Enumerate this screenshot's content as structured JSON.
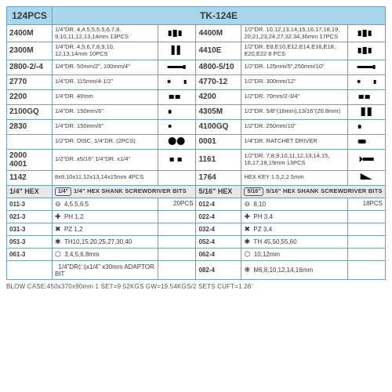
{
  "header": {
    "left": "124PCS",
    "right": "TK-124E"
  },
  "layout": {
    "col_widths_pct": [
      12,
      28,
      10,
      12,
      28,
      10
    ],
    "header_bg": "#a8d6ec",
    "border_color": "#6fa0b8",
    "shank_bg": "#e8e8e8",
    "bg": "#ffffff",
    "text_color": "#3a3a3a",
    "font_size_body": 8,
    "font_size_header": 12,
    "font_size_code": 10
  },
  "rows": [
    {
      "l": {
        "code": "2400M",
        "desc": "1/4\"DR.  4,4.5,5,5.5,6,7,8,\n9,10,11,12,13,14mm    13PCS",
        "icon": "socket-set"
      },
      "r": {
        "code": "4400M",
        "desc": "1/2\"DR.  10,12,13,14,15,16,17,18,19,\n20,21,23,24,27,32,34,36mm    17PCS",
        "icon": "socket-set"
      }
    },
    {
      "l": {
        "code": "2300M",
        "desc": "1/4\"DR.  4,5,6,7,8,9,10,\n12,13,14mm    10PCS",
        "icon": "deep-socket"
      },
      "r": {
        "code": "4410E",
        "desc": "1/2\"DR.  E8,E10,E12,E14,E16,E18,\nE20,E22    8 PCS",
        "icon": "socket-set"
      }
    },
    {
      "l": {
        "code": "2800-2/-4",
        "desc": "1/4\"DR.  50mm/2\", 100mm/4\"",
        "icon": "extension"
      },
      "r": {
        "code": "4800-5/10",
        "desc": "1/2\"DR.  125mm/5\",250mm/10\"",
        "icon": "extension"
      }
    },
    {
      "l": {
        "code": "2770",
        "desc": "1/4\"DR.  115mm/4-1/2\"",
        "icon": "spinner"
      },
      "r": {
        "code": "4770-12",
        "desc": "1/2\"DR.  300mm/12\"",
        "icon": "spinner"
      }
    },
    {
      "l": {
        "code": "2200",
        "desc": "1/4\"DR.  40mm",
        "icon": "ujoint"
      },
      "r": {
        "code": "4200",
        "desc": "1/2\"DR.  70mm/2-3/4\"",
        "icon": "ujoint"
      }
    },
    {
      "l": {
        "code": "2100GQ",
        "desc": "1/4\"DR.  150mm/6\"",
        "icon": "ratchet"
      },
      "r": {
        "code": "4305M",
        "desc": "1/2\"DR.  5/8\"(16mm),13/16\"(20.8mm)",
        "icon": "spark-socket"
      }
    },
    {
      "l": {
        "code": "2830",
        "desc": "1/4\"DR.  150mm/6\"",
        "icon": "flex-handle"
      },
      "r": {
        "code": "4100GQ",
        "desc": "1/2\"DR.  250mm/10\"",
        "icon": "ratchet"
      }
    },
    {
      "l": {
        "code": "",
        "desc": "1/2\"DR. DISC, 1/4\"DR. (2PCS)",
        "icon": "disc"
      },
      "r": {
        "code": "0001",
        "desc": "1/4\"DR.  RATCHET DRIVER",
        "icon": "ratchet-driver"
      }
    },
    {
      "l": {
        "code": "2000\n4001",
        "desc": "1/2\"DR. x5/16\"           1/4\"DR. x1/4\"",
        "icon": "adaptor"
      },
      "r": {
        "code": "1161",
        "desc": "1/2\"DR.  7,8,9,10,11,12,13,14,15,\n16,17,18,19mm    13PCS",
        "icon": "crow-foot"
      }
    },
    {
      "l": {
        "code": "1142",
        "desc": "8x9,10x11,12x13,14x15mm    4PCS",
        "icon": "wrench-set"
      },
      "r": {
        "code": "1764",
        "desc": "HEX KEY 1.5,2,2.5mm",
        "icon": "hexkey"
      }
    }
  ],
  "shank": {
    "l": {
      "code": "1/4\" HEX",
      "badge": "1/4\"",
      "text": "1/4\" HEX SHANK\nSCREWDRIVER BITS"
    },
    "r": {
      "code": "5/16\" HEX",
      "badge": "5/16\"",
      "text": "5/16\" HEX SHANK\nSCREWDRIVER BITS"
    }
  },
  "bits": [
    {
      "l": {
        "code": "011-3",
        "sym": "⊖",
        "desc": "4,5.5,6.5",
        "qty": "20PCS"
      },
      "r": {
        "code": "012-4",
        "sym": "⊖",
        "desc": "8,10",
        "qty": "18PCS"
      }
    },
    {
      "l": {
        "code": "021-3",
        "sym": "✚",
        "desc": "PH 1,2",
        "qty": ""
      },
      "r": {
        "code": "022-4",
        "sym": "✚",
        "desc": "PH 3,4",
        "qty": ""
      }
    },
    {
      "l": {
        "code": "031-3",
        "sym": "✖",
        "desc": "PZ 1,2",
        "qty": ""
      },
      "r": {
        "code": "032-4",
        "sym": "✖",
        "desc": "PZ 3,4",
        "qty": ""
      }
    },
    {
      "l": {
        "code": "051-3",
        "sym": "✱",
        "desc": "TH10,15,20,25,27,30,40",
        "qty": ""
      },
      "r": {
        "code": "052-4",
        "sym": "✱",
        "desc": "TH 45,50,55,60",
        "qty": ""
      }
    },
    {
      "l": {
        "code": "061-3",
        "sym": "⬡",
        "desc": "3,4,5,6,8mm",
        "qty": ""
      },
      "r": {
        "code": "062-4",
        "sym": "⬡",
        "desc": "10,12mm",
        "qty": ""
      }
    },
    {
      "l": {
        "code": "",
        "sym": "",
        "desc": "1/4\"DR(□)x1/4\"   x30mm ADAPTOR BIT",
        "qty": ""
      },
      "r": {
        "code": "082-4",
        "sym": "❋",
        "desc": "M6,8,10,12,14,16mm",
        "qty": ""
      }
    }
  ],
  "footer": "BLOW CASE:450x370x90mm   1 SET=9.52KGS   GW=19.54KGS/2 SETS   CUFT=1.26'"
}
